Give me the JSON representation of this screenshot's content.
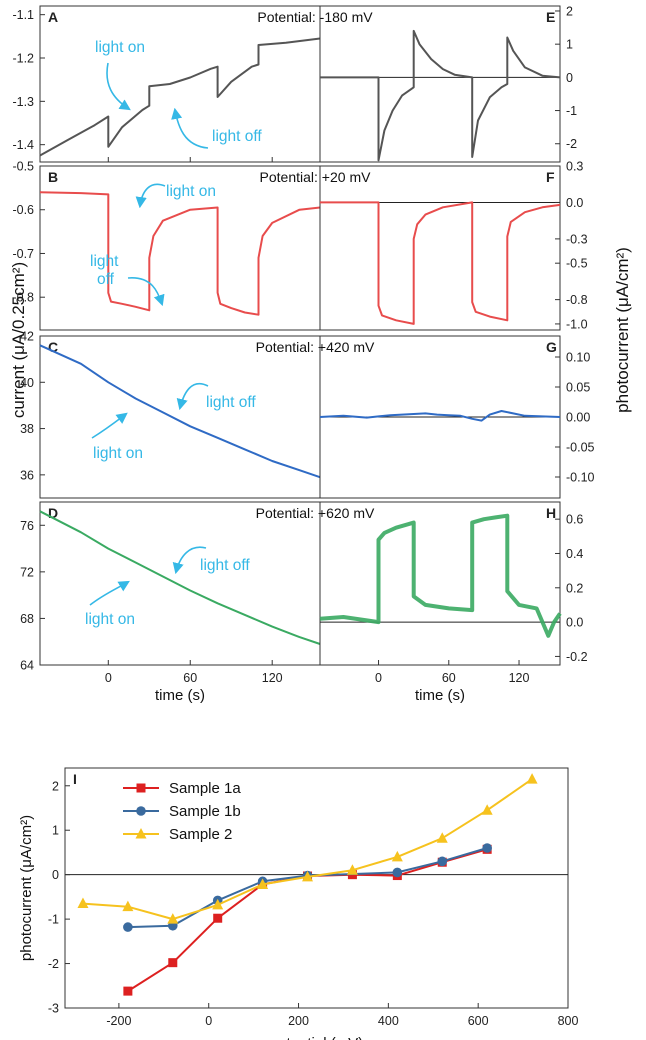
{
  "chart_data": [
    {
      "id": "A",
      "type": "line",
      "panel_label": "A",
      "title": "Potential: -180 mV",
      "xlim": [
        -50,
        155
      ],
      "ylim": [
        -1.44,
        -1.08
      ],
      "yticks": [
        -1.1,
        -1.2,
        -1.3,
        -1.4
      ],
      "ytick_labels": [
        "-1.1",
        "-1.2",
        "-1.3",
        "-1.4"
      ],
      "xticks": [
        0,
        60,
        120
      ],
      "color": "#555555",
      "series": [
        {
          "name": "current",
          "x": [
            -50,
            -30,
            -10,
            0,
            0,
            10,
            25,
            30,
            30,
            45,
            60,
            75,
            80,
            80,
            90,
            105,
            110,
            110,
            130,
            155
          ],
          "y": [
            -1.425,
            -1.39,
            -1.355,
            -1.335,
            -1.405,
            -1.36,
            -1.32,
            -1.31,
            -1.265,
            -1.26,
            -1.245,
            -1.225,
            -1.22,
            -1.29,
            -1.255,
            -1.22,
            -1.215,
            -1.17,
            -1.165,
            -1.155
          ]
        }
      ],
      "annotations": [
        {
          "text": "light on"
        },
        {
          "text": "light off"
        }
      ]
    },
    {
      "id": "E",
      "type": "line",
      "panel_label": "E",
      "xlim": [
        -50,
        155
      ],
      "ylim": [
        -2.55,
        2.15
      ],
      "yticks": [
        2,
        1,
        0,
        -1,
        -2
      ],
      "ytick_labels": [
        "2",
        "1",
        "0",
        "-1",
        "-2"
      ],
      "color": "#555555",
      "series": [
        {
          "name": "photocurrent",
          "x": [
            -50,
            0,
            0,
            5,
            12,
            20,
            30,
            30,
            35,
            45,
            55,
            65,
            80,
            80,
            85,
            95,
            105,
            110,
            110,
            115,
            125,
            140,
            155
          ],
          "y": [
            0,
            0,
            -2.5,
            -1.6,
            -1.0,
            -0.55,
            -0.3,
            1.4,
            1.0,
            0.55,
            0.25,
            0.08,
            0,
            -2.4,
            -1.3,
            -0.6,
            -0.3,
            -0.2,
            1.2,
            0.8,
            0.3,
            0.05,
            0
          ]
        }
      ]
    },
    {
      "id": "B",
      "type": "line",
      "panel_label": "B",
      "title": "Potential: +20 mV",
      "xlim": [
        -50,
        155
      ],
      "ylim": [
        -0.875,
        -0.5
      ],
      "yticks": [
        -0.5,
        -0.6,
        -0.7,
        -0.8
      ],
      "ytick_labels": [
        "-0.5",
        "-0.6",
        "-0.7",
        "-0.8"
      ],
      "color": "#e84c4c",
      "series": [
        {
          "name": "current",
          "x": [
            -50,
            -20,
            0,
            0,
            2,
            10,
            20,
            30,
            30,
            33,
            40,
            60,
            80,
            80,
            82,
            90,
            100,
            110,
            110,
            113,
            120,
            140,
            155
          ],
          "y": [
            -0.56,
            -0.562,
            -0.565,
            -0.79,
            -0.81,
            -0.815,
            -0.822,
            -0.83,
            -0.71,
            -0.66,
            -0.625,
            -0.6,
            -0.595,
            -0.79,
            -0.815,
            -0.825,
            -0.835,
            -0.84,
            -0.71,
            -0.66,
            -0.63,
            -0.6,
            -0.595
          ]
        }
      ],
      "annotations": [
        {
          "text": "light on"
        },
        {
          "text": "light"
        },
        {
          "text": "off"
        }
      ]
    },
    {
      "id": "F",
      "type": "line",
      "panel_label": "F",
      "xlim": [
        -50,
        155
      ],
      "ylim": [
        -1.05,
        0.3
      ],
      "yticks": [
        0.3,
        0.0,
        -0.3,
        -0.5,
        -0.8,
        -1.0
      ],
      "ytick_labels": [
        "0.3",
        "0.0",
        "-0.3",
        "-0.5",
        "-0.8",
        "-1.0"
      ],
      "color": "#e84c4c",
      "series": [
        {
          "name": "photocurrent",
          "x": [
            -50,
            0,
            0,
            3,
            15,
            30,
            30,
            33,
            40,
            55,
            80,
            80,
            83,
            95,
            110,
            110,
            113,
            125,
            140,
            155
          ],
          "y": [
            0.0,
            0.0,
            -0.85,
            -0.93,
            -0.97,
            -1.0,
            -0.3,
            -0.18,
            -0.1,
            -0.04,
            0.0,
            -0.82,
            -0.9,
            -0.94,
            -0.97,
            -0.28,
            -0.16,
            -0.08,
            -0.04,
            -0.02
          ]
        }
      ]
    },
    {
      "id": "C",
      "type": "line",
      "panel_label": "C",
      "title": "Potential: +420 mV",
      "xlim": [
        -50,
        155
      ],
      "ylim": [
        35,
        42
      ],
      "yticks": [
        42,
        40,
        38,
        36
      ],
      "ytick_labels": [
        "42",
        "40",
        "38",
        "36"
      ],
      "color": "#2f6bc5",
      "series": [
        {
          "name": "current",
          "x": [
            -50,
            -20,
            0,
            20,
            40,
            60,
            80,
            100,
            120,
            140,
            155
          ],
          "y": [
            41.6,
            40.8,
            40.0,
            39.3,
            38.7,
            38.1,
            37.6,
            37.1,
            36.6,
            36.2,
            35.9
          ]
        }
      ],
      "annotations": [
        {
          "text": "light off"
        },
        {
          "text": "light on"
        }
      ]
    },
    {
      "id": "G",
      "type": "line",
      "panel_label": "G",
      "xlim": [
        -50,
        155
      ],
      "ylim": [
        -0.135,
        0.135
      ],
      "yticks": [
        0.1,
        0.05,
        0.0,
        -0.05,
        -0.1
      ],
      "ytick_labels": [
        "0.10",
        "0.05",
        "0.00",
        "-0.05",
        "-0.10"
      ],
      "color": "#2f6bc5",
      "series": [
        {
          "name": "photocurrent",
          "x": [
            -50,
            -30,
            -10,
            0,
            10,
            20,
            30,
            40,
            50,
            60,
            70,
            80,
            88,
            95,
            105,
            115,
            125,
            140,
            155
          ],
          "y": [
            0.0,
            0.002,
            -0.001,
            0.001,
            0.003,
            0.004,
            0.005,
            0.006,
            0.004,
            0.003,
            0.002,
            -0.003,
            -0.006,
            0.004,
            0.01,
            0.006,
            0.002,
            0.001,
            0.0
          ]
        }
      ]
    },
    {
      "id": "D",
      "type": "line",
      "panel_label": "D",
      "title": "Potential: +620 mV",
      "xlim": [
        -50,
        155
      ],
      "ylim": [
        64,
        78
      ],
      "yticks": [
        76,
        72,
        68,
        64
      ],
      "ytick_labels": [
        "76",
        "72",
        "68",
        "64"
      ],
      "xticks": [
        0,
        60,
        120
      ],
      "xtick_labels": [
        "0",
        "60",
        "120"
      ],
      "xlabel": "time (s)",
      "color": "#3aaa62",
      "series": [
        {
          "name": "current",
          "x": [
            -50,
            -20,
            0,
            20,
            40,
            60,
            80,
            100,
            120,
            140,
            155
          ],
          "y": [
            77.2,
            75.4,
            74.0,
            72.8,
            71.6,
            70.4,
            69.3,
            68.3,
            67.3,
            66.4,
            65.8
          ]
        }
      ],
      "annotations": [
        {
          "text": "light off"
        },
        {
          "text": "light on"
        }
      ]
    },
    {
      "id": "H",
      "type": "line",
      "panel_label": "H",
      "xlim": [
        -50,
        155
      ],
      "ylim": [
        -0.25,
        0.7
      ],
      "yticks": [
        0.6,
        0.4,
        0.2,
        0.0,
        -0.2
      ],
      "ytick_labels": [
        "0.6",
        "0.4",
        "0.2",
        "0.0",
        "-0.2"
      ],
      "xticks": [
        0,
        60,
        120
      ],
      "xtick_labels": [
        "0",
        "60",
        "120"
      ],
      "xlabel": "time (s)",
      "color": "#3aaa62",
      "series": [
        {
          "name": "photocurrent",
          "x": [
            -50,
            -30,
            -10,
            0,
            0,
            5,
            15,
            25,
            30,
            30,
            40,
            60,
            80,
            80,
            90,
            100,
            110,
            110,
            120,
            135,
            145,
            150,
            155
          ],
          "y": [
            0.02,
            0.03,
            0.01,
            0.0,
            0.48,
            0.52,
            0.55,
            0.57,
            0.58,
            0.15,
            0.1,
            0.08,
            0.07,
            0.58,
            0.6,
            0.61,
            0.62,
            0.18,
            0.1,
            0.08,
            -0.08,
            0.0,
            0.05
          ]
        }
      ]
    },
    {
      "id": "I",
      "type": "line",
      "panel_label": "I",
      "xlim": [
        -320,
        800
      ],
      "ylim": [
        -3,
        2.4
      ],
      "xticks": [
        -200,
        0,
        200,
        400,
        600,
        800
      ],
      "xtick_labels": [
        "-200",
        "0",
        "200",
        "400",
        "600",
        "800"
      ],
      "yticks": [
        2,
        1,
        0,
        -1,
        -2,
        -3
      ],
      "ytick_labels": [
        "2",
        "1",
        "0",
        "-1",
        "-2",
        "-3"
      ],
      "xlabel": "potential (mV)",
      "ylabel": "photocurrent (μA/cm²)",
      "legend": "top-left",
      "series": [
        {
          "name": "Sample 1a",
          "color": "#dd2020",
          "marker": "square",
          "x": [
            -180,
            -80,
            20,
            120,
            220,
            320,
            420,
            520,
            620
          ],
          "y": [
            -2.62,
            -1.98,
            -0.98,
            -0.22,
            -0.03,
            0.0,
            -0.02,
            0.28,
            0.57
          ]
        },
        {
          "name": "Sample 1b",
          "color": "#3a6a9e",
          "marker": "circle",
          "x": [
            -180,
            -80,
            20,
            120,
            220,
            420,
            520,
            620
          ],
          "y": [
            -1.18,
            -1.15,
            -0.58,
            -0.15,
            -0.02,
            0.05,
            0.3,
            0.6
          ]
        },
        {
          "name": "Sample 2",
          "color": "#f6c21e",
          "marker": "triangle",
          "x": [
            -280,
            -180,
            -80,
            20,
            120,
            220,
            320,
            420,
            520,
            620,
            720
          ],
          "y": [
            -0.65,
            -0.72,
            -1.0,
            -0.68,
            -0.22,
            -0.05,
            0.1,
            0.4,
            0.82,
            1.45,
            2.15
          ]
        }
      ]
    }
  ],
  "labels": {
    "ylabel_left": "current (μA/0.25cm²)",
    "ylabel_right": "photocurrent (μA/cm²)"
  }
}
